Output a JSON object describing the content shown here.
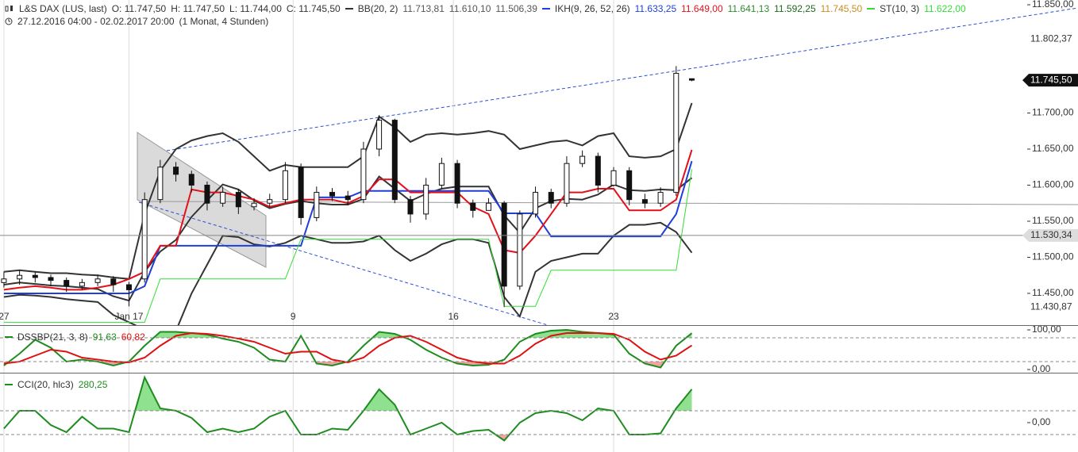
{
  "header": {
    "symbol": "L&S DAX (LUS, last)",
    "ohlc": [
      "O: 11.747,50",
      "H: 11.747,50",
      "L: 11.744,00",
      "C: 11.745,50"
    ],
    "range": "27.12.2016 04:00 - 02.02.2017 20:00",
    "period": "(1 Monat, 4 Stunden)"
  },
  "chart_data": [
    {
      "type": "candlestick",
      "x": [
        0,
        2,
        4,
        6,
        8,
        10,
        12,
        14,
        16,
        18,
        20,
        22,
        24,
        26,
        28,
        30,
        32,
        34,
        36,
        38,
        40,
        42,
        44,
        46,
        48,
        50,
        52,
        54,
        56,
        58,
        60,
        62,
        64,
        66,
        68,
        70,
        72,
        74,
        76,
        78,
        80,
        82,
        84,
        86,
        88
      ],
      "open": [
        11465,
        11470,
        11475,
        11472,
        11468,
        11460,
        11465,
        11470,
        11462,
        11470,
        11580,
        11625,
        11615,
        11600,
        11575,
        11590,
        11570,
        11575,
        11580,
        11625,
        11555,
        11590,
        11585,
        11580,
        11650,
        11690,
        11580,
        11560,
        11600,
        11630,
        11575,
        11565,
        11575,
        11460,
        11560,
        11590,
        11575,
        11630,
        11640,
        11600,
        11620,
        11580,
        11575,
        11590,
        11747.5
      ],
      "high": [
        11480,
        11482,
        11480,
        11476,
        11472,
        11470,
        11476,
        11474,
        11466,
        11590,
        11635,
        11632,
        11620,
        11605,
        11598,
        11595,
        11582,
        11588,
        11632,
        11630,
        11598,
        11596,
        11592,
        11660,
        11697,
        11692,
        11585,
        11610,
        11638,
        11635,
        11580,
        11582,
        11578,
        11565,
        11598,
        11595,
        11640,
        11648,
        11645,
        11625,
        11625,
        11588,
        11597,
        11765,
        11747.5
      ],
      "low": [
        11458,
        11462,
        11465,
        11460,
        11452,
        11455,
        11460,
        11452,
        11432,
        11465,
        11575,
        11605,
        11590,
        11565,
        11570,
        11560,
        11565,
        11570,
        11575,
        11545,
        11550,
        11578,
        11572,
        11575,
        11640,
        11575,
        11548,
        11552,
        11595,
        11568,
        11555,
        11565,
        11431,
        11455,
        11555,
        11568,
        11570,
        11625,
        11590,
        11598,
        11572,
        11568,
        11570,
        11585,
        11744
      ],
      "close": [
        11470,
        11475,
        11472,
        11468,
        11460,
        11465,
        11470,
        11462,
        11455,
        11580,
        11625,
        11615,
        11600,
        11575,
        11590,
        11570,
        11575,
        11580,
        11620,
        11555,
        11590,
        11585,
        11580,
        11650,
        11690,
        11580,
        11560,
        11600,
        11630,
        11575,
        11565,
        11575,
        11460,
        11560,
        11590,
        11575,
        11630,
        11640,
        11600,
        11620,
        11580,
        11575,
        11590,
        11755,
        11745.5
      ],
      "overlays": [
        {
          "name": "BB(20, 2)",
          "color": "#333333",
          "lines": [
            {
              "values": [
                11480,
                11482,
                11480,
                11478,
                11478,
                11476,
                11475,
                11472,
                11470,
                11560,
                11620,
                11650,
                11662,
                11668,
                11672,
                11660,
                11640,
                11620,
                11628,
                11625,
                11625,
                11625,
                11625,
                11640,
                11695,
                11680,
                11660,
                11670,
                11672,
                11670,
                11672,
                11675,
                11670,
                11650,
                11655,
                11660,
                11662,
                11655,
                11668,
                11672,
                11640,
                11638,
                11640,
                11650,
                11713.81
              ],
              "label": "11.713,81"
            },
            {
              "values": [
                11462,
                11465,
                11463,
                11461,
                11460,
                11458,
                11456,
                11446,
                11440,
                11480,
                11508,
                11524,
                11556,
                11579,
                11601,
                11594,
                11579,
                11568,
                11574,
                11578,
                11575,
                11573,
                11573,
                11581,
                11612,
                11595,
                11578,
                11588,
                11595,
                11598,
                11598,
                11598,
                11558,
                11534,
                11568,
                11578,
                11581,
                11580,
                11587,
                11601,
                11593,
                11592,
                11594,
                11593,
                11610.1
              ],
              "label": "11.610,10"
            },
            {
              "values": [
                11445,
                11448,
                11447,
                11445,
                11442,
                11440,
                11438,
                11420,
                11410,
                11400,
                11395,
                11398,
                11450,
                11490,
                11530,
                11528,
                11518,
                11515,
                11520,
                11530,
                11525,
                11520,
                11520,
                11522,
                11530,
                11510,
                11495,
                11505,
                11518,
                11525,
                11525,
                11520,
                11445,
                11418,
                11480,
                11495,
                11500,
                11505,
                11505,
                11530,
                11545,
                11545,
                11548,
                11535,
                11506.39
              ],
              "label": "11.506,39"
            }
          ]
        },
        {
          "name": "IKH(9, 26, 52, 26)",
          "color": "#1f3fd8",
          "lines": [
            {
              "color": "#1f3fd8",
              "values": [
                11450,
                11450,
                11450,
                11450,
                11450,
                11450,
                11450,
                11450,
                11450,
                11460,
                11516,
                11516,
                11516,
                11516,
                11516,
                11516,
                11516,
                11516,
                11516,
                11516,
                11583,
                11583,
                11583,
                11592,
                11592,
                11592,
                11592,
                11592,
                11592,
                11592,
                11592,
                11592,
                11561,
                11561,
                11561,
                11529,
                11529,
                11529,
                11529,
                11529,
                11529,
                11529,
                11529,
                11560,
                11633.25
              ],
              "label": "11.633,25"
            },
            {
              "color": "#e3101a",
              "values": [
                11455,
                11458,
                11460,
                11458,
                11455,
                11455,
                11458,
                11462,
                11470,
                11480,
                11516,
                11516,
                11594,
                11590,
                11590,
                11585,
                11580,
                11570,
                11575,
                11580,
                11580,
                11580,
                11575,
                11585,
                11608,
                11608,
                11590,
                11590,
                11590,
                11590,
                11570,
                11560,
                11510,
                11506,
                11530,
                11560,
                11590,
                11590,
                11595,
                11595,
                11565,
                11565,
                11565,
                11580,
                11649
              ],
              "label": "11.649,00"
            }
          ],
          "readouts": [
            {
              "label": "11.641,13",
              "color": "#2e8b2e"
            },
            {
              "label": "11.592,25",
              "color": "#1d6a1d"
            },
            {
              "label": "11.745,50",
              "color": "#c88e1e"
            }
          ]
        },
        {
          "name": "ST(10, 3)",
          "color": "#33dd33",
          "lines": [
            {
              "values": [
                11410,
                11410,
                11410,
                11410,
                11410,
                11410,
                11410,
                11410,
                11410,
                11410,
                11470,
                11470,
                11470,
                11470,
                11470,
                11470,
                11470,
                11470,
                11470,
                11525,
                11525,
                11525,
                11525,
                11525,
                11525,
                11525,
                11525,
                11525,
                11525,
                11525,
                11525,
                11525,
                11432,
                11432,
                11432,
                11482,
                11482,
                11482,
                11482,
                11482,
                11482,
                11482,
                11482,
                11482,
                11622
              ],
              "label": "11.622,00"
            }
          ]
        }
      ],
      "xlim": [
        -0.5,
        130.5
      ],
      "xticks": [
        {
          "value": 0,
          "label": "27"
        },
        {
          "value": 16,
          "label": "Jan 17"
        },
        {
          "value": 37,
          "label": "9"
        },
        {
          "value": 57.5,
          "label": "16"
        },
        {
          "value": 78,
          "label": "23"
        }
      ],
      "ylim": [
        11406,
        11856.6
      ],
      "yticks": [
        {
          "value": 11850,
          "label": "11.850,00"
        },
        {
          "value": 11700,
          "label": "11.700,00"
        },
        {
          "value": 11650,
          "label": "11.650,00"
        },
        {
          "value": 11600,
          "label": "11.600,00"
        },
        {
          "value": 11550,
          "label": "11.550,00"
        },
        {
          "value": 11500,
          "label": "11.500,00"
        },
        {
          "value": 11450,
          "label": "11.450,00"
        }
      ],
      "price_labels": [
        {
          "value": 11802.37,
          "label": "11.802,37"
        },
        {
          "value": 11745.5,
          "label": "11.745,50",
          "style": "current"
        },
        {
          "value": 11530.34,
          "label": "11.530,34",
          "style": "line"
        },
        {
          "value": 11430.87,
          "label": "11.430,87"
        }
      ]
    },
    {
      "type": "line",
      "title": "DSSBP(21, 3, 8)",
      "x": [
        0,
        2,
        4,
        6,
        8,
        10,
        12,
        14,
        16,
        18,
        20,
        22,
        24,
        26,
        28,
        30,
        32,
        34,
        36,
        38,
        40,
        42,
        44,
        46,
        48,
        50,
        52,
        54,
        56,
        58,
        60,
        62,
        64,
        66,
        68,
        70,
        72,
        74,
        76,
        78,
        80,
        82,
        84,
        86,
        88
      ],
      "series": [
        {
          "color": "#1e8c1e",
          "values": [
            10,
            40,
            75,
            55,
            20,
            25,
            20,
            10,
            20,
            60,
            95,
            95,
            92,
            88,
            78,
            70,
            55,
            25,
            20,
            85,
            15,
            10,
            20,
            60,
            95,
            90,
            75,
            50,
            30,
            15,
            10,
            12,
            25,
            70,
            90,
            98,
            100,
            95,
            92,
            88,
            40,
            15,
            5,
            60,
            91.63
          ],
          "label": "91,63"
        },
        {
          "color": "#e01010",
          "values": [
            15,
            20,
            35,
            50,
            45,
            30,
            25,
            20,
            18,
            30,
            60,
            85,
            92,
            90,
            85,
            78,
            70,
            55,
            40,
            45,
            45,
            25,
            18,
            30,
            60,
            80,
            85,
            70,
            50,
            30,
            20,
            15,
            15,
            35,
            65,
            85,
            92,
            92,
            92,
            90,
            75,
            45,
            25,
            35,
            60.82
          ],
          "label": "60,82"
        }
      ],
      "xlim": [
        -0.5,
        130.5
      ],
      "ylim": [
        -8,
        110
      ],
      "yticks": [
        {
          "value": 100,
          "label": "100,00"
        },
        {
          "value": 0,
          "label": "0,00"
        }
      ],
      "levels": [
        80,
        20
      ],
      "fill_colors": [
        "#8fe08f",
        "#f2a3a3"
      ]
    },
    {
      "type": "line",
      "title": "CCI(20, hlc3)",
      "x": [
        0,
        2,
        4,
        6,
        8,
        10,
        12,
        14,
        16,
        18,
        20,
        22,
        24,
        26,
        28,
        30,
        32,
        34,
        36,
        38,
        40,
        42,
        44,
        46,
        48,
        50,
        52,
        54,
        56,
        58,
        60,
        62,
        64,
        66,
        68,
        70,
        72,
        74,
        76,
        78,
        80,
        82,
        84,
        86,
        88
      ],
      "series": [
        {
          "color": "#1e8c1e",
          "values": [
            -50,
            100,
            100,
            -20,
            -80,
            50,
            -50,
            -50,
            -80,
            380,
            120,
            100,
            40,
            -80,
            -50,
            -80,
            -50,
            50,
            100,
            -100,
            -100,
            -50,
            -60,
            100,
            280,
            150,
            -100,
            -50,
            0,
            -100,
            -70,
            -60,
            -150,
            0,
            80,
            100,
            80,
            20,
            120,
            100,
            -100,
            -100,
            -90,
            120,
            280.25
          ],
          "label": "280,25"
        }
      ],
      "xlim": [
        -0.5,
        130.5
      ],
      "ylim": [
        -247,
        413
      ],
      "yticks": [
        {
          "value": 0,
          "label": "0,00"
        }
      ],
      "levels": [
        100,
        -100
      ],
      "fill_colors": [
        "#8fe08f",
        "#f2a3a3"
      ]
    }
  ]
}
